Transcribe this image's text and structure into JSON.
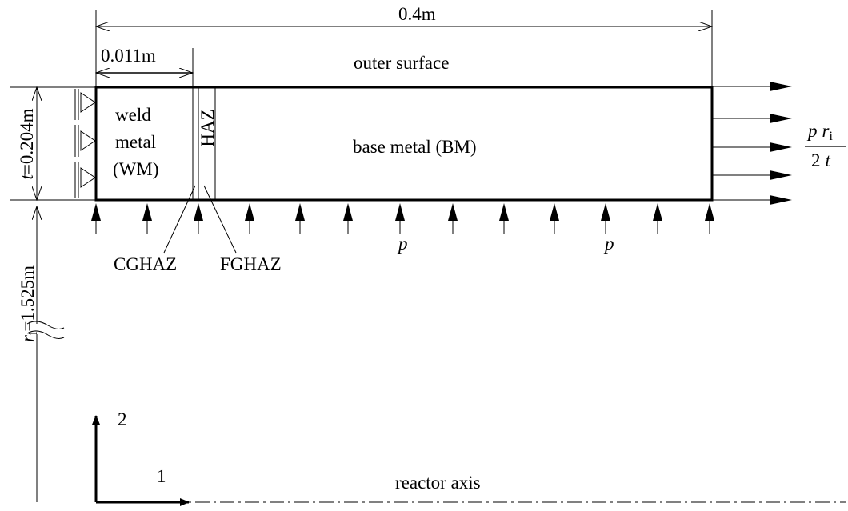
{
  "dimensions": {
    "total_length": "0.4m",
    "weld_width": "0.011m",
    "thickness_var": "t",
    "thickness_value": "=0.204m",
    "radius_var": "r",
    "radius_sub": "i",
    "radius_value": "=1.525m"
  },
  "regions": {
    "outer_surface": "outer surface",
    "weld_line1": "weld",
    "weld_line2": "metal",
    "weld_line3": "(WM)",
    "haz": "HAZ",
    "base_metal": "base metal (BM)"
  },
  "zones": {
    "cghaz": "CGHAZ",
    "fghaz": "FGHAZ"
  },
  "loads": {
    "pressure_symbol": "p",
    "axial_numerator_p": "p",
    "axial_numerator_r": "r",
    "axial_numerator_sub": "i",
    "axial_denominator": "2",
    "axial_denominator_t": "t"
  },
  "axes": {
    "axis1": "1",
    "axis2": "2",
    "reactor_axis": "reactor axis"
  }
}
